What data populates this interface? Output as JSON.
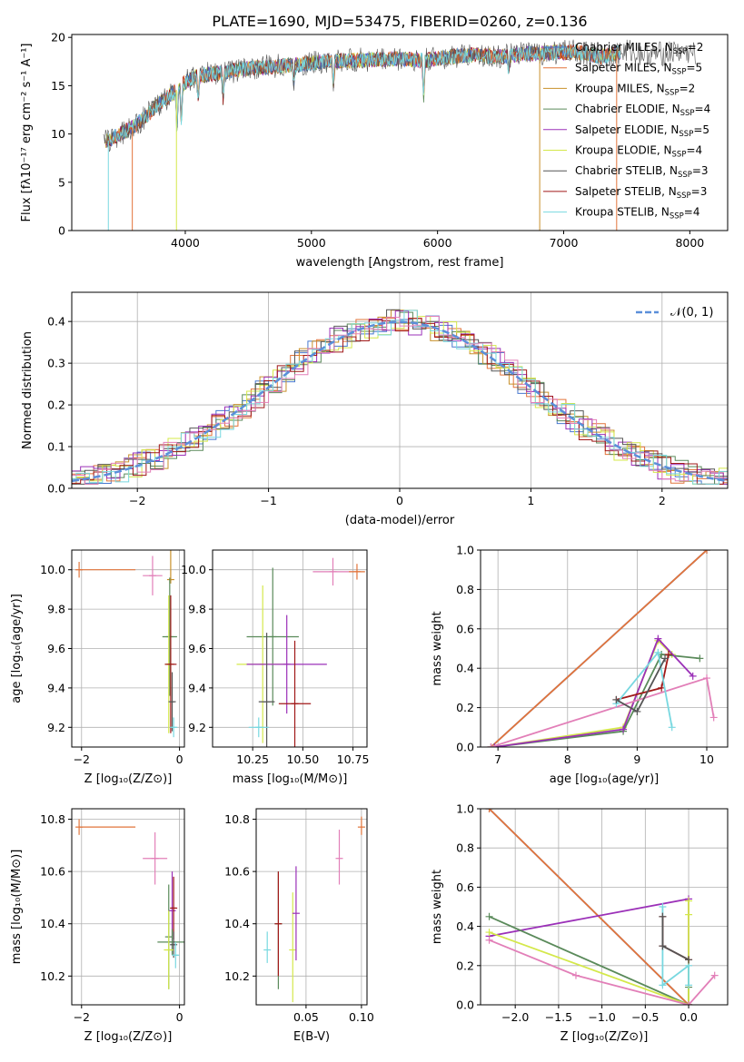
{
  "figure": {
    "title": "PLATE=1690, MJD=53475, FIBERID=0260, z=0.136"
  },
  "colors": {
    "chabrier_miles": "#4878cf",
    "salpeter_miles": "#e2743a",
    "kroupa_miles": "#c8902a",
    "chabrier_elodie": "#5a8a5a",
    "salpeter_elodie": "#9b30b8",
    "kroupa_elodie": "#d4e84a",
    "chabrier_stelib": "#555555",
    "salpeter_stelib": "#a01818",
    "kroupa_stelib": "#78d8e0",
    "pink": "#e27fb8",
    "gauss": "#5b8fd9",
    "data_grey": "#888888"
  },
  "chart_data": [
    {
      "id": "spectrum",
      "type": "line",
      "xlabel": "wavelength [Angstrom, rest frame]",
      "ylabel": "Flux [fλ10⁻¹⁷ erg cm⁻² s⁻¹ A⁻¹]",
      "xlim": [
        3100,
        8300
      ],
      "ylim": [
        0,
        20.3
      ],
      "xticks": [
        "4000",
        "5000",
        "6000",
        "7000",
        "8000"
      ],
      "yticks": [
        "0",
        "5",
        "10",
        "15",
        "20"
      ],
      "legend_position": "upper-right",
      "legend": [
        {
          "label": "Chabrier MILES, N",
          "sub": "SSP",
          "tail": "=2",
          "color": "chabrier_miles"
        },
        {
          "label": "Salpeter MILES, N",
          "sub": "SSP",
          "tail": "=5",
          "color": "salpeter_miles"
        },
        {
          "label": "Kroupa MILES, N",
          "sub": "SSP",
          "tail": "=2",
          "color": "kroupa_miles"
        },
        {
          "label": "Chabrier ELODIE, N",
          "sub": "SSP",
          "tail": "=4",
          "color": "chabrier_elodie"
        },
        {
          "label": "Salpeter ELODIE, N",
          "sub": "SSP",
          "tail": "=5",
          "color": "salpeter_elodie"
        },
        {
          "label": "Kroupa ELODIE, N",
          "sub": "SSP",
          "tail": "=4",
          "color": "kroupa_elodie"
        },
        {
          "label": "Chabrier STELIB, N",
          "sub": "SSP",
          "tail": "=3",
          "color": "chabrier_stelib"
        },
        {
          "label": "Salpeter STELIB, N",
          "sub": "SSP",
          "tail": "=3",
          "color": "salpeter_stelib"
        },
        {
          "label": "Kroupa STELIB, N",
          "sub": "SSP",
          "tail": "=4",
          "color": "kroupa_stelib"
        }
      ],
      "continuum": {
        "x": [
          3350,
          3450,
          3600,
          3700,
          3800,
          3900,
          4000,
          4100,
          4200,
          4300,
          4500,
          4700,
          4900,
          5100,
          5300,
          5500,
          5700,
          5900,
          6100,
          6300,
          6500,
          6700,
          6900,
          7100,
          7300,
          7500,
          7700,
          7900,
          8050
        ],
        "y": [
          9.0,
          9.8,
          10.8,
          12.0,
          13.2,
          14.2,
          15.4,
          16.0,
          16.2,
          16.4,
          16.8,
          17.0,
          17.2,
          17.5,
          17.6,
          17.7,
          17.8,
          17.6,
          18.0,
          18.2,
          18.0,
          18.3,
          18.4,
          18.5,
          18.0,
          18.6,
          18.2,
          18.5,
          18.3
        ]
      }
    },
    {
      "id": "residuals",
      "type": "area",
      "xlabel": "(data-model)/error",
      "ylabel": "Normed distribution",
      "xlim": [
        -2.5,
        2.5
      ],
      "ylim": [
        0,
        0.47
      ],
      "xticks": [
        -2,
        -1,
        0,
        1,
        2
      ],
      "yticks": [
        0.0,
        0.1,
        0.2,
        0.3,
        0.4
      ],
      "grid": true,
      "legend": "𝒩(0, 1)",
      "gaussian": {
        "mean": 0,
        "sigma": 1
      }
    },
    {
      "id": "age_vs_Z",
      "type": "scatter",
      "xlabel": "Z [log₁₀(Z/Z⊙)]",
      "ylabel": "age  [log₁₀(age/yr)]",
      "xlim": [
        -2.2,
        0.1
      ],
      "ylim": [
        9.1,
        10.1
      ],
      "xticks": [
        -2,
        0
      ],
      "yticks": [
        9.2,
        9.4,
        9.6,
        9.8,
        10.0
      ],
      "grid": true,
      "points": [
        {
          "x": -2.05,
          "y": 10.0,
          "xerr": [
            0,
            1.15
          ],
          "yerr": [
            0.04,
            0.04
          ],
          "color": "salpeter_miles"
        },
        {
          "x": -0.55,
          "y": 9.97,
          "xerr": [
            0.2,
            0.2
          ],
          "yerr": [
            0.1,
            0.1
          ],
          "color": "pink"
        },
        {
          "x": -0.18,
          "y": 9.95,
          "xerr": [
            0.02,
            0.02
          ],
          "yerr": [
            0.02,
            0.45
          ],
          "color": "kroupa_miles"
        },
        {
          "x": -0.2,
          "y": 9.66,
          "xerr": [
            0.15,
            0.15
          ],
          "yerr": [
            0.3,
            0.3
          ],
          "color": "chabrier_elodie"
        },
        {
          "x": -0.22,
          "y": 9.52,
          "xerr": [
            0.05,
            0.05
          ],
          "yerr": [
            0.35,
            0.35
          ],
          "color": "kroupa_elodie"
        },
        {
          "x": -0.18,
          "y": 9.52,
          "xerr": [
            0.12,
            0.12
          ],
          "yerr": [
            0.35,
            0.35
          ],
          "color": "salpeter_stelib"
        },
        {
          "x": -0.15,
          "y": 9.33,
          "xerr": [
            0.04,
            0.04
          ],
          "yerr": [
            0.15,
            0.15
          ],
          "color": "chabrier_stelib"
        },
        {
          "x": -0.12,
          "y": 9.2,
          "xerr": [
            0.05,
            0.05
          ],
          "yerr": [
            0.05,
            0.05
          ],
          "color": "kroupa_stelib"
        }
      ]
    },
    {
      "id": "age_vs_mass",
      "type": "scatter",
      "xlabel": "mass [log₁₀(M/M⊙)]",
      "ylabel": "",
      "xlim": [
        10.05,
        10.82
      ],
      "ylim": [
        9.1,
        10.1
      ],
      "xticks": [
        10.25,
        10.5,
        10.75
      ],
      "yticks": [
        9.2,
        9.4,
        9.6,
        9.8,
        10.0
      ],
      "grid": true,
      "points": [
        {
          "x": 10.65,
          "y": 9.99,
          "xerr": [
            0.1,
            0.1
          ],
          "yerr": [
            0.07,
            0.07
          ],
          "color": "pink"
        },
        {
          "x": 10.77,
          "y": 9.99,
          "xerr": [
            0.04,
            0.04
          ],
          "yerr": [
            0.04,
            0.04
          ],
          "color": "salpeter_miles"
        },
        {
          "x": 10.35,
          "y": 9.66,
          "xerr": [
            0.13,
            0.13
          ],
          "yerr": [
            0.35,
            0.35
          ],
          "color": "chabrier_elodie"
        },
        {
          "x": 10.3,
          "y": 9.52,
          "xerr": [
            0.13,
            0.13
          ],
          "yerr": [
            0.4,
            0.4
          ],
          "color": "kroupa_elodie"
        },
        {
          "x": 10.42,
          "y": 9.52,
          "xerr": [
            0.2,
            0.2
          ],
          "yerr": [
            0.25,
            0.25
          ],
          "color": "salpeter_elodie"
        },
        {
          "x": 10.32,
          "y": 9.33,
          "xerr": [
            0.04,
            0.04
          ],
          "yerr": [
            0.35,
            0.35
          ],
          "color": "chabrier_stelib"
        },
        {
          "x": 10.46,
          "y": 9.32,
          "xerr": [
            0.08,
            0.08
          ],
          "yerr": [
            0.32,
            0.32
          ],
          "color": "salpeter_stelib"
        },
        {
          "x": 10.28,
          "y": 9.2,
          "xerr": [
            0.05,
            0.05
          ],
          "yerr": [
            0.05,
            0.05
          ],
          "color": "kroupa_stelib"
        }
      ]
    },
    {
      "id": "weight_vs_age",
      "type": "line",
      "xlabel": "age  [log₁₀(age/yr)]",
      "ylabel": "mass weight",
      "xlim": [
        6.75,
        10.3
      ],
      "ylim": [
        0,
        1
      ],
      "xticks": [
        7,
        8,
        9,
        10
      ],
      "yticks": [
        0.0,
        0.2,
        0.4,
        0.6,
        0.8,
        1.0
      ],
      "grid": true,
      "series": [
        {
          "color": "chabrier_miles",
          "x": [
            6.9,
            10.0
          ],
          "y": [
            0.0,
            1.0
          ]
        },
        {
          "color": "salpeter_miles",
          "x": [
            6.9,
            10.0
          ],
          "y": [
            0.0,
            1.0
          ]
        },
        {
          "color": "kroupa_elodie",
          "x": [
            6.95,
            8.8,
            9.3,
            9.5
          ],
          "y": [
            0.0,
            0.1,
            0.54,
            0.47
          ]
        },
        {
          "color": "chabrier_elodie",
          "x": [
            6.95,
            8.8,
            9.35,
            9.9
          ],
          "y": [
            0.0,
            0.08,
            0.47,
            0.45
          ]
        },
        {
          "color": "salpeter_elodie",
          "x": [
            6.95,
            8.8,
            9.3,
            9.8
          ],
          "y": [
            0.0,
            0.09,
            0.55,
            0.36
          ]
        },
        {
          "color": "pink",
          "x": [
            6.9,
            10.0,
            10.1
          ],
          "y": [
            0.0,
            0.35,
            0.15
          ]
        },
        {
          "color": "salpeter_stelib",
          "x": [
            8.7,
            9.35,
            9.45
          ],
          "y": [
            0.24,
            0.3,
            0.47
          ]
        },
        {
          "color": "kroupa_stelib",
          "x": [
            8.7,
            9.3,
            9.5
          ],
          "y": [
            0.22,
            0.48,
            0.1
          ]
        },
        {
          "color": "chabrier_stelib",
          "x": [
            8.7,
            9.0,
            9.4
          ],
          "y": [
            0.24,
            0.18,
            0.45
          ]
        }
      ]
    },
    {
      "id": "mass_vs_Z",
      "type": "scatter",
      "xlabel": "Z [log₁₀(Z/Z⊙)]",
      "ylabel": "mass [log₁₀(M/M⊙)]",
      "xlim": [
        -2.2,
        0.1
      ],
      "ylim": [
        10.09,
        10.84
      ],
      "xticks": [
        -2,
        0
      ],
      "yticks": [
        10.2,
        10.4,
        10.6,
        10.8
      ],
      "grid": true,
      "points": [
        {
          "x": -2.05,
          "y": 10.77,
          "xerr": [
            0,
            1.15
          ],
          "yerr": [
            0.03,
            0.03
          ],
          "color": "salpeter_miles"
        },
        {
          "x": -0.5,
          "y": 10.65,
          "xerr": [
            0.25,
            0.25
          ],
          "yerr": [
            0.1,
            0.1
          ],
          "color": "pink"
        },
        {
          "x": -0.15,
          "y": 10.45,
          "xerr": [
            0.02,
            0.02
          ],
          "yerr": [
            0.15,
            0.15
          ],
          "color": "salpeter_elodie"
        },
        {
          "x": -0.12,
          "y": 10.46,
          "xerr": [
            0.05,
            0.05
          ],
          "yerr": [
            0.12,
            0.12
          ],
          "color": "salpeter_stelib"
        },
        {
          "x": -0.22,
          "y": 10.35,
          "xerr": [
            0.02,
            0.02
          ],
          "yerr": [
            0.2,
            0.2
          ],
          "color": "chabrier_elodie"
        },
        {
          "x": -0.15,
          "y": 10.33,
          "xerr": [
            0.3,
            0.3
          ],
          "yerr": [
            0.05,
            0.05
          ],
          "color": "chabrier_elodie"
        },
        {
          "x": -0.12,
          "y": 10.32,
          "xerr": [
            0.05,
            0.05
          ],
          "yerr": [
            0.05,
            0.05
          ],
          "color": "chabrier_stelib"
        },
        {
          "x": -0.22,
          "y": 10.3,
          "xerr": [
            0.1,
            0.1
          ],
          "yerr": [
            0.15,
            0.15
          ],
          "color": "kroupa_elodie"
        },
        {
          "x": -0.08,
          "y": 10.28,
          "xerr": [
            0.05,
            0.05
          ],
          "yerr": [
            0.05,
            0.05
          ],
          "color": "kroupa_stelib"
        }
      ]
    },
    {
      "id": "mass_vs_EBV",
      "type": "scatter",
      "xlabel": "E(B-V)",
      "ylabel": "",
      "xlim": [
        0.005,
        0.105
      ],
      "ylim": [
        10.09,
        10.84
      ],
      "xticks": [
        0.05,
        0.1
      ],
      "yticks": [
        10.2,
        10.4,
        10.6,
        10.8
      ],
      "grid": true,
      "points": [
        {
          "x": 0.015,
          "y": 10.3,
          "yerr": [
            0.05,
            0.07
          ],
          "color": "kroupa_stelib"
        },
        {
          "x": 0.025,
          "y": 10.4,
          "yerr": [
            0.25,
            0.2
          ],
          "color": "chabrier_elodie"
        },
        {
          "x": 0.025,
          "y": 10.4,
          "yerr": [
            0.2,
            0.2
          ],
          "color": "salpeter_stelib"
        },
        {
          "x": 0.038,
          "y": 10.3,
          "yerr": [
            0.2,
            0.22
          ],
          "color": "kroupa_elodie"
        },
        {
          "x": 0.041,
          "y": 10.44,
          "yerr": [
            0.18,
            0.18
          ],
          "color": "salpeter_elodie"
        },
        {
          "x": 0.08,
          "y": 10.65,
          "yerr": [
            0.1,
            0.11
          ],
          "color": "pink"
        },
        {
          "x": 0.1,
          "y": 10.77,
          "yerr": [
            0.03,
            0.04
          ],
          "color": "salpeter_miles"
        }
      ]
    },
    {
      "id": "weight_vs_Z",
      "type": "line",
      "xlabel": "Z [log₁₀(Z/Z⊙)]",
      "ylabel": "mass weight",
      "xlim": [
        -2.4,
        0.45
      ],
      "ylim": [
        0,
        1
      ],
      "xticks": [
        -2.0,
        -1.5,
        -1.0,
        -0.5,
        0.0
      ],
      "yticks": [
        0.0,
        0.2,
        0.4,
        0.6,
        0.8,
        1.0
      ],
      "grid": true,
      "series": [
        {
          "color": "chabrier_miles",
          "x": [
            -2.3,
            0.0
          ],
          "y": [
            1.0,
            0.0
          ]
        },
        {
          "color": "salpeter_miles",
          "x": [
            -2.3,
            0.0
          ],
          "y": [
            1.0,
            0.0
          ]
        },
        {
          "color": "salpeter_elodie",
          "x": [
            -2.3,
            0.0,
            0.0
          ],
          "y": [
            0.35,
            0.54,
            0.0
          ]
        },
        {
          "color": "chabrier_elodie",
          "x": [
            -2.3,
            0.0,
            0.0
          ],
          "y": [
            0.45,
            0.0,
            0.09
          ]
        },
        {
          "color": "kroupa_elodie",
          "x": [
            -2.3,
            0.0,
            0.0,
            0.0
          ],
          "y": [
            0.37,
            0.0,
            0.53,
            0.46
          ]
        },
        {
          "color": "pink",
          "x": [
            -2.3,
            -1.3,
            0.0,
            0.3
          ],
          "y": [
            0.33,
            0.15,
            0.0,
            0.15
          ]
        },
        {
          "color": "kroupa_stelib",
          "x": [
            -0.3,
            -0.3,
            0.0,
            0.0
          ],
          "y": [
            0.5,
            0.1,
            0.2,
            0.1
          ]
        },
        {
          "color": "salpeter_stelib",
          "x": [
            -0.3,
            -0.3,
            0.0
          ],
          "y": [
            0.45,
            0.3,
            0.23
          ]
        },
        {
          "color": "chabrier_stelib",
          "x": [
            -0.3,
            -0.3,
            0.0
          ],
          "y": [
            0.45,
            0.3,
            0.23
          ]
        }
      ]
    }
  ]
}
